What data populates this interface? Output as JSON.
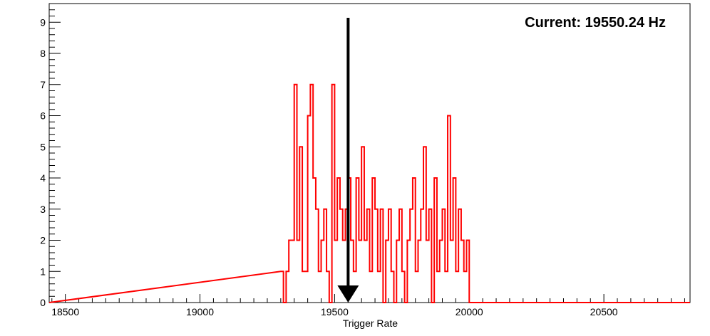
{
  "readout": "Current: 19550.24 Hz",
  "chart_data": {
    "type": "histogram",
    "xlabel": "Trigger Rate",
    "ylabel": "",
    "xlim": [
      18440,
      20820
    ],
    "ylim": [
      0,
      9.6
    ],
    "grid": false,
    "x_ticks": [
      "18500",
      "19000",
      "19500",
      "20000",
      "20500"
    ],
    "y_ticks": [
      "0",
      "1",
      "2",
      "3",
      "4",
      "5",
      "6",
      "7",
      "8",
      "9"
    ],
    "bin_width": 10,
    "series": [
      {
        "color": "#ff0000",
        "bins": [
          [
            19300,
            1
          ],
          [
            19310,
            0
          ],
          [
            19320,
            1
          ],
          [
            19330,
            2
          ],
          [
            19340,
            2
          ],
          [
            19350,
            7
          ],
          [
            19360,
            2
          ],
          [
            19370,
            5
          ],
          [
            19380,
            1
          ],
          [
            19390,
            1
          ],
          [
            19400,
            6
          ],
          [
            19410,
            7
          ],
          [
            19420,
            4
          ],
          [
            19430,
            3
          ],
          [
            19440,
            1
          ],
          [
            19450,
            2
          ],
          [
            19460,
            3
          ],
          [
            19470,
            1
          ],
          [
            19480,
            0
          ],
          [
            19490,
            7
          ],
          [
            19500,
            2
          ],
          [
            19510,
            4
          ],
          [
            19520,
            3
          ],
          [
            19530,
            2
          ],
          [
            19540,
            3
          ],
          [
            19550,
            4
          ],
          [
            19560,
            2
          ],
          [
            19570,
            1
          ],
          [
            19580,
            4
          ],
          [
            19590,
            2
          ],
          [
            19600,
            5
          ],
          [
            19610,
            2
          ],
          [
            19620,
            3
          ],
          [
            19630,
            1
          ],
          [
            19640,
            4
          ],
          [
            19650,
            3
          ],
          [
            19660,
            1
          ],
          [
            19670,
            3
          ],
          [
            19680,
            0
          ],
          [
            19690,
            2
          ],
          [
            19700,
            3
          ],
          [
            19710,
            1
          ],
          [
            19720,
            0
          ],
          [
            19730,
            2
          ],
          [
            19740,
            3
          ],
          [
            19750,
            1
          ],
          [
            19760,
            0
          ],
          [
            19770,
            2
          ],
          [
            19780,
            3
          ],
          [
            19790,
            4
          ],
          [
            19800,
            1
          ],
          [
            19810,
            2
          ],
          [
            19820,
            3
          ],
          [
            19830,
            5
          ],
          [
            19840,
            2
          ],
          [
            19850,
            3
          ],
          [
            19860,
            0
          ],
          [
            19870,
            4
          ],
          [
            19880,
            1
          ],
          [
            19890,
            2
          ],
          [
            19900,
            3
          ],
          [
            19910,
            1
          ],
          [
            19920,
            6
          ],
          [
            19930,
            2
          ],
          [
            19940,
            4
          ],
          [
            19950,
            1
          ],
          [
            19960,
            3
          ],
          [
            19970,
            2
          ],
          [
            19980,
            1
          ],
          [
            19990,
            2
          ],
          [
            20000,
            0
          ]
        ]
      }
    ],
    "marker": {
      "type": "arrow",
      "x": 19550.24,
      "color": "#000000"
    }
  }
}
